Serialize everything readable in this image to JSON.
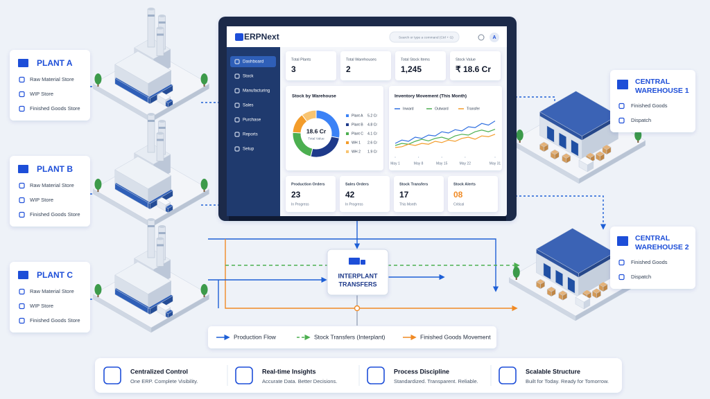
{
  "plants": [
    {
      "name": "PLANT A",
      "stores": [
        "Raw Material Store",
        "WIP Store",
        "Finished Goods Store"
      ]
    },
    {
      "name": "PLANT B",
      "stores": [
        "Raw Material Store",
        "WIP Store",
        "Finished Goods Store"
      ]
    },
    {
      "name": "PLANT C",
      "stores": [
        "Raw Material Store",
        "WIP Store",
        "Finished Goods Store"
      ]
    }
  ],
  "warehouses": [
    {
      "name": [
        "CENTRAL",
        "WAREHOUSE 1"
      ],
      "items": [
        "Finished Goods",
        "Dispatch"
      ]
    },
    {
      "name": [
        "CENTRAL",
        "WAREHOUSE 2"
      ],
      "items": [
        "Finished Goods",
        "Dispatch"
      ]
    }
  ],
  "dashboard": {
    "logo": "ERPNext",
    "search": "Search or type a command (Ctrl + G)",
    "avatar": "A",
    "menu": [
      "Dashboard",
      "Stock",
      "Manufacturing",
      "Sales",
      "Purchase",
      "Reports",
      "Setup"
    ],
    "kpis": [
      {
        "label": "Total Plants",
        "value": "3"
      },
      {
        "label": "Total Warehouses",
        "value": "2"
      },
      {
        "label": "Total Stock Items",
        "value": "1,245"
      },
      {
        "label": "Stock Value",
        "value": "₹ 18.6 Cr"
      }
    ],
    "stock_chart": {
      "type": "pie",
      "title": "Stock by Warehouse",
      "center_value": "18.6 Cr",
      "center_label": "Total Value",
      "categories": [
        "Plant A",
        "Plant B",
        "Plant C",
        "WH 1",
        "WH 2"
      ],
      "values": [
        5.2,
        4.8,
        4.1,
        2.6,
        1.9
      ],
      "value_labels": [
        "5.2 Cr",
        "4.8 Cr",
        "4.1 Cr",
        "2.6 Cr",
        "1.9 Cr"
      ],
      "colors": [
        "#3b82f6",
        "#1e3a8a",
        "#4caf50",
        "#f39c2a",
        "#f8c471"
      ]
    },
    "movement_chart": {
      "type": "line",
      "title": "Inventory Movement (This Month)",
      "x": [
        1,
        3,
        5,
        7,
        9,
        11,
        13,
        15,
        17,
        19,
        21,
        23,
        25,
        27,
        29,
        31
      ],
      "xlim": [
        1,
        31
      ],
      "ylim": [
        0,
        100
      ],
      "xticks": [
        {
          "value": 1,
          "label": "May 1"
        },
        {
          "value": 8,
          "label": "May 8"
        },
        {
          "value": 15,
          "label": "May 15"
        },
        {
          "value": 22,
          "label": "May 22"
        },
        {
          "value": 31,
          "label": "May 31"
        }
      ],
      "series": [
        {
          "name": "Inward",
          "color": "#2f6fe0",
          "values": [
            30,
            38,
            35,
            45,
            42,
            50,
            48,
            58,
            55,
            63,
            60,
            70,
            68,
            78,
            74,
            84
          ]
        },
        {
          "name": "Outward",
          "color": "#4caf50",
          "values": [
            25,
            30,
            28,
            35,
            40,
            36,
            42,
            45,
            40,
            48,
            52,
            50,
            58,
            62,
            58,
            64
          ]
        },
        {
          "name": "Transfer",
          "color": "#f39c2a",
          "values": [
            20,
            22,
            28,
            25,
            30,
            28,
            35,
            32,
            38,
            35,
            42,
            45,
            40,
            48,
            46,
            52
          ]
        }
      ]
    },
    "orders": [
      {
        "label": "Production Orders",
        "value": "23",
        "note": "In Progress"
      },
      {
        "label": "Sales Orders",
        "value": "42",
        "note": "In Progress"
      },
      {
        "label": "Stock Transfers",
        "value": "17",
        "note": "This Month"
      },
      {
        "label": "Stock Alerts",
        "value": "08",
        "note": "Critical"
      }
    ]
  },
  "transfer_node": [
    "INTERPLANT",
    "TRANSFERS"
  ],
  "legend": [
    {
      "label": "Production Flow",
      "color": "#1d5fd6",
      "line_style": "solid"
    },
    {
      "label": "Stock Transfers (Interplant)",
      "color": "#4caf50",
      "line_style": "dashed"
    },
    {
      "label": "Finished Goods Movement",
      "color": "#f08a24",
      "line_style": "solid"
    }
  ],
  "features": [
    {
      "title": "Centralized Control",
      "subtitle": "One ERP. Complete Visibility."
    },
    {
      "title": "Real-time Insights",
      "subtitle": "Accurate Data. Better Decisions."
    },
    {
      "title": "Process Discipline",
      "subtitle": "Standardized. Transparent. Reliable."
    },
    {
      "title": "Scalable Structure",
      "subtitle": "Built for Today. Ready for Tomorrow."
    }
  ]
}
